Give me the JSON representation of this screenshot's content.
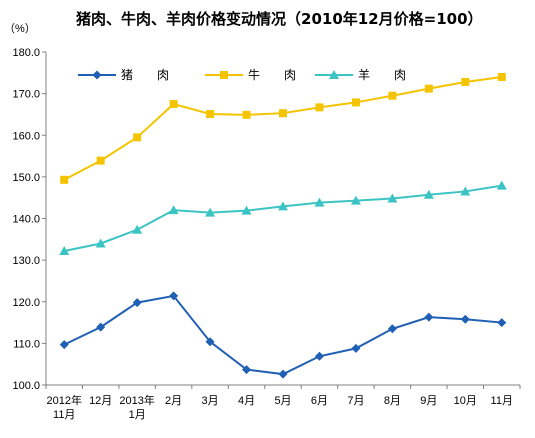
{
  "chart_data": {
    "type": "line",
    "title": "猪肉、牛肉、羊肉价格变动情况（2010年12月价格=100）",
    "unit": "（%）",
    "categories": [
      [
        "2012年",
        "11月"
      ],
      [
        "12月"
      ],
      [
        "2013年",
        "1月"
      ],
      [
        "2月"
      ],
      [
        "3月"
      ],
      [
        "4月"
      ],
      [
        "5月"
      ],
      [
        "6月"
      ],
      [
        "7月"
      ],
      [
        "8月"
      ],
      [
        "9月"
      ],
      [
        "10月"
      ],
      [
        "11月"
      ]
    ],
    "ylim": [
      100,
      180
    ],
    "yticks": [
      "100.0",
      "110.0",
      "120.0",
      "130.0",
      "140.0",
      "150.0",
      "160.0",
      "170.0",
      "180.0"
    ],
    "legend_position": "top",
    "grid": false,
    "series": [
      {
        "name": "猪　　肉",
        "color": "#1f5fb4",
        "marker": "diamond",
        "values": [
          109.7,
          113.9,
          119.8,
          121.4,
          110.4,
          103.7,
          102.6,
          106.9,
          108.8,
          113.5,
          116.3,
          115.8,
          115.0
        ]
      },
      {
        "name": "牛　　肉",
        "color": "#f5c400",
        "marker": "square",
        "values": [
          149.3,
          153.9,
          159.5,
          167.5,
          165.1,
          164.9,
          165.3,
          166.7,
          167.9,
          169.5,
          171.2,
          172.8,
          174.0
        ]
      },
      {
        "name": "羊　　肉",
        "color": "#3cc4c4",
        "marker": "triangle",
        "values": [
          132.2,
          134.0,
          137.3,
          142.0,
          141.4,
          141.9,
          142.9,
          143.8,
          144.3,
          144.8,
          145.7,
          146.5,
          147.9
        ]
      }
    ]
  }
}
